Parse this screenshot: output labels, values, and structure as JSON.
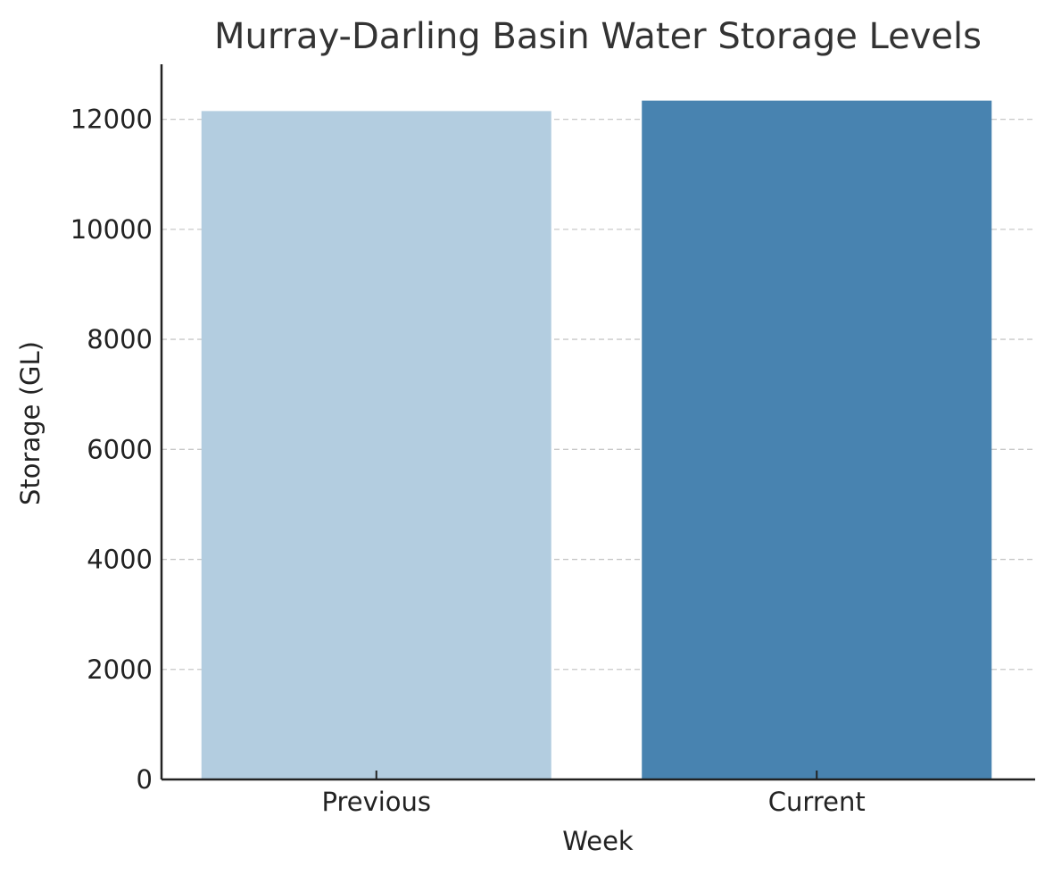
{
  "chart_data": {
    "type": "bar",
    "title": "Murray-Darling Basin Water Storage Levels",
    "xlabel": "Week",
    "ylabel": "Storage (GL)",
    "categories": [
      "Previous",
      "Current"
    ],
    "values": [
      12150,
      12340
    ],
    "colors": [
      "#b3cde0",
      "#4883b0"
    ],
    "ylim": [
      0,
      13000
    ],
    "yticks": [
      0,
      2000,
      4000,
      6000,
      8000,
      10000,
      12000
    ],
    "grid": true,
    "grid_axis": "y",
    "legend": "none"
  }
}
